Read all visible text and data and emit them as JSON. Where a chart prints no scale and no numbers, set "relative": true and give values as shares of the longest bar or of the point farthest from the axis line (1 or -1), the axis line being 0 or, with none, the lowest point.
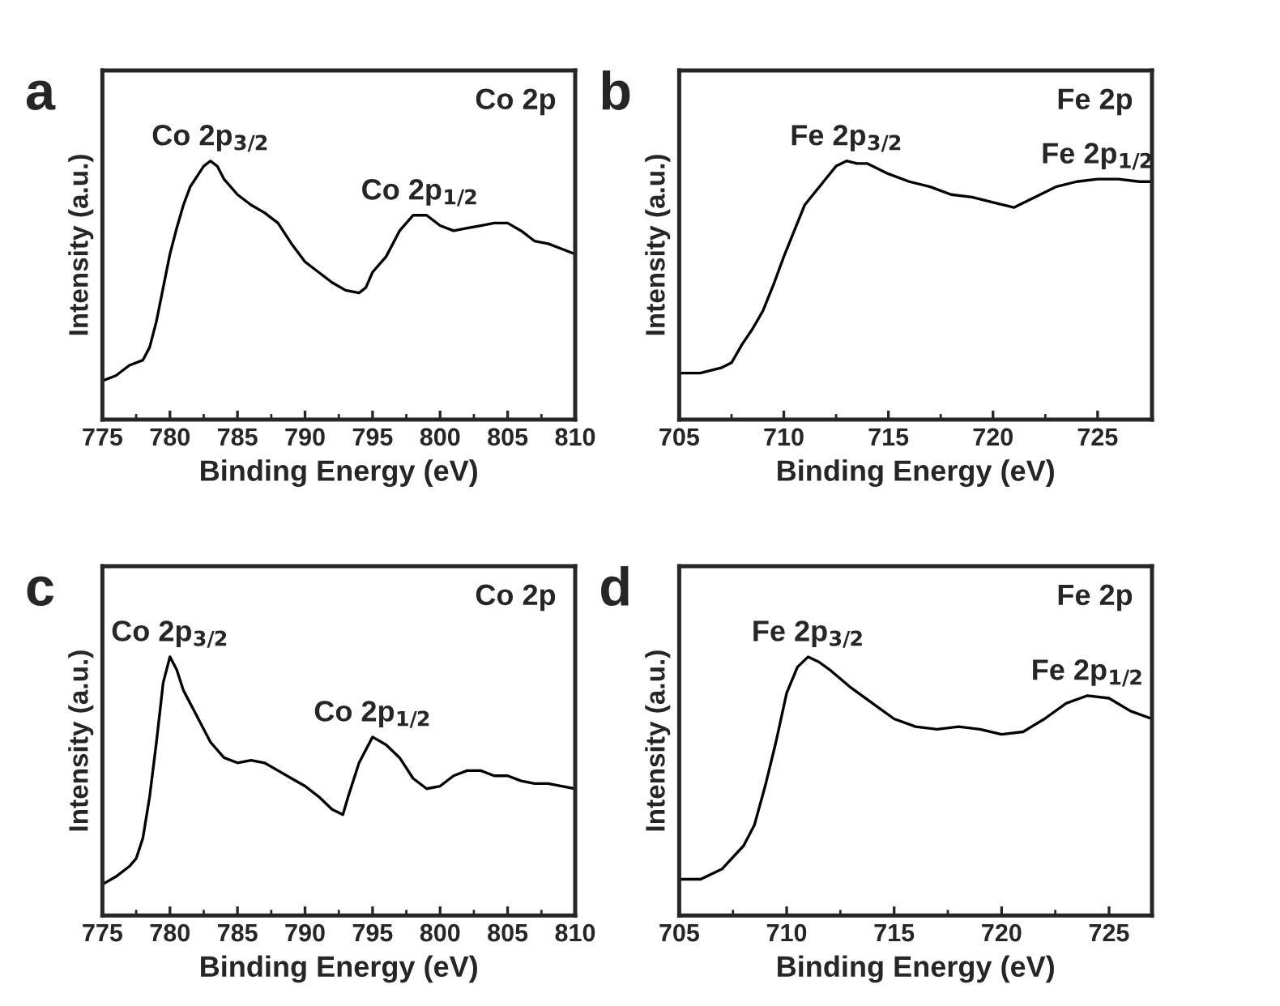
{
  "chart_data": [
    {
      "type": "line",
      "title": "a",
      "xlabel": "Binding Energy (eV)",
      "ylabel": "Intensity (a.u.)",
      "relative": true,
      "tick_labels": "x",
      "xlim": [
        775,
        810
      ],
      "xticks": [
        775,
        780,
        785,
        790,
        795,
        800,
        805,
        810
      ],
      "annotations": [
        {
          "text": "Co 2p$_{3/2}$",
          "x": 783,
          "y": 1.0
        },
        {
          "text": "Co 2p$_{1/2}$",
          "x": 798.5,
          "y": 0.79
        },
        "Co 2p"
      ],
      "x": [
        775,
        776,
        777,
        778,
        778.5,
        779,
        779.5,
        780,
        780.5,
        781,
        781.5,
        782,
        782.5,
        783,
        783.5,
        784,
        785,
        786,
        787,
        788,
        789,
        790,
        791,
        792,
        793,
        794,
        794.5,
        795,
        796,
        797,
        798,
        799,
        800,
        801,
        802,
        803,
        804,
        805,
        806,
        807,
        808,
        809,
        810
      ],
      "series": [
        {
          "color": "#000000",
          "values": [
            0.15,
            0.17,
            0.21,
            0.23,
            0.28,
            0.38,
            0.51,
            0.64,
            0.74,
            0.83,
            0.9,
            0.94,
            0.98,
            1.0,
            0.98,
            0.93,
            0.87,
            0.83,
            0.8,
            0.76,
            0.68,
            0.61,
            0.57,
            0.53,
            0.5,
            0.49,
            0.51,
            0.57,
            0.63,
            0.73,
            0.79,
            0.79,
            0.75,
            0.73,
            0.74,
            0.75,
            0.76,
            0.76,
            0.73,
            0.69,
            0.68,
            0.66,
            0.64
          ]
        }
      ]
    },
    {
      "type": "line",
      "title": "b",
      "xlabel": "Binding Energy (eV)",
      "ylabel": "Intensity (a.u.)",
      "relative": true,
      "tick_labels": "x",
      "xlim": [
        705,
        727.6
      ],
      "xticks": [
        705,
        710,
        715,
        720,
        725
      ],
      "annotations": [
        {
          "text": "Fe 2p$_{3/2}$",
          "x": 713,
          "y": 1.0
        },
        {
          "text": "Fe 2p$_{1/2}$",
          "x": 725,
          "y": 0.93
        },
        "Fe 2p"
      ],
      "x": [
        705,
        706,
        707,
        707.5,
        708,
        708.5,
        709,
        709.5,
        710,
        710.5,
        711,
        711.5,
        712,
        712.5,
        713,
        713.5,
        714,
        715,
        716,
        717,
        718,
        719,
        720,
        721,
        722,
        723,
        724,
        725,
        726,
        727,
        727.6
      ],
      "series": [
        {
          "color": "#000000",
          "values": [
            0.18,
            0.18,
            0.2,
            0.22,
            0.29,
            0.35,
            0.42,
            0.52,
            0.63,
            0.73,
            0.83,
            0.88,
            0.93,
            0.98,
            1.0,
            0.99,
            0.99,
            0.95,
            0.92,
            0.9,
            0.87,
            0.86,
            0.84,
            0.82,
            0.86,
            0.9,
            0.92,
            0.93,
            0.93,
            0.92,
            0.92
          ]
        }
      ]
    },
    {
      "type": "line",
      "title": "c",
      "xlabel": "Binding Energy (eV)",
      "ylabel": "Intensity (a.u.)",
      "relative": true,
      "tick_labels": "x",
      "xlim": [
        775,
        810
      ],
      "xticks": [
        775,
        780,
        785,
        790,
        795,
        800,
        805,
        810
      ],
      "annotations": [
        {
          "text": "Co 2p$_{3/2}$",
          "x": 780,
          "y": 1.0
        },
        {
          "text": "Co 2p$_{1/2}$",
          "x": 795,
          "y": 0.69
        },
        "Co 2p"
      ],
      "x": [
        775,
        776,
        777,
        777.5,
        778,
        778.5,
        779,
        779.5,
        780,
        780.5,
        781,
        782,
        783,
        784,
        785,
        786,
        787,
        788,
        789,
        790,
        791,
        792,
        792.8,
        793.2,
        794,
        795,
        796,
        797,
        798,
        799,
        800,
        801,
        802,
        803,
        804,
        805,
        806,
        807,
        808,
        809,
        810
      ],
      "series": [
        {
          "color": "#000000",
          "values": [
            0.12,
            0.15,
            0.19,
            0.22,
            0.3,
            0.46,
            0.67,
            0.9,
            1.0,
            0.95,
            0.87,
            0.77,
            0.67,
            0.61,
            0.59,
            0.6,
            0.59,
            0.56,
            0.53,
            0.5,
            0.46,
            0.41,
            0.39,
            0.46,
            0.59,
            0.69,
            0.66,
            0.61,
            0.53,
            0.49,
            0.5,
            0.54,
            0.56,
            0.56,
            0.54,
            0.54,
            0.52,
            0.51,
            0.51,
            0.5,
            0.49
          ]
        }
      ]
    },
    {
      "type": "line",
      "title": "d",
      "xlabel": "Binding Energy (eV)",
      "ylabel": "Intensity (a.u.)",
      "relative": true,
      "tick_labels": "x",
      "xlim": [
        705,
        727
      ],
      "xticks": [
        705,
        710,
        715,
        720,
        725
      ],
      "annotations": [
        {
          "text": "Fe 2p$_{3/2}$",
          "x": 711,
          "y": 1.0
        },
        {
          "text": "Fe 2p$_{1/2}$",
          "x": 724,
          "y": 0.85
        },
        "Fe 2p"
      ],
      "x": [
        705,
        706,
        707,
        708,
        708.5,
        709,
        709.5,
        710,
        710.5,
        711,
        711.5,
        712,
        713,
        714,
        715,
        716,
        717,
        718,
        719,
        720,
        721,
        722,
        723,
        724,
        725,
        726,
        727
      ],
      "series": [
        {
          "color": "#000000",
          "values": [
            0.14,
            0.14,
            0.18,
            0.27,
            0.35,
            0.5,
            0.67,
            0.86,
            0.96,
            1.0,
            0.98,
            0.95,
            0.88,
            0.82,
            0.76,
            0.73,
            0.72,
            0.73,
            0.72,
            0.7,
            0.71,
            0.76,
            0.82,
            0.85,
            0.84,
            0.79,
            0.76
          ]
        }
      ]
    }
  ]
}
